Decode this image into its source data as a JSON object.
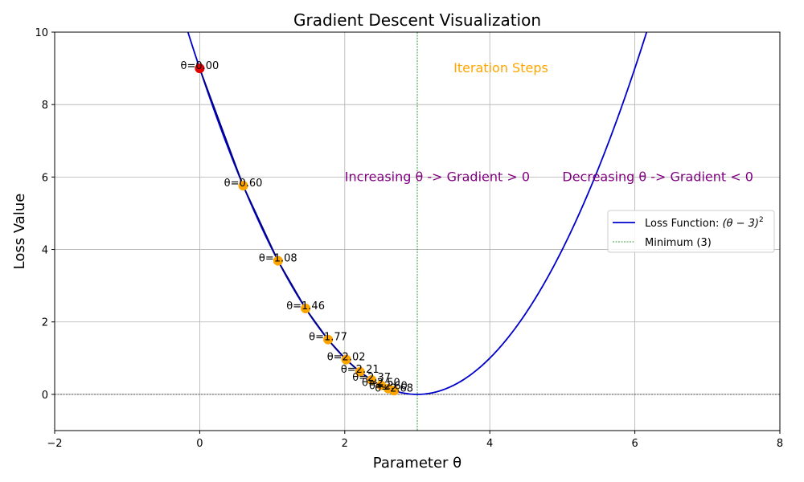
{
  "chart_data": {
    "type": "line",
    "title": "Gradient Descent Visualization",
    "xlabel": "Parameter θ",
    "ylabel": "Loss Value",
    "xlim": [
      -2,
      8
    ],
    "ylim": [
      -1,
      10
    ],
    "xticks": [
      -2,
      0,
      2,
      4,
      6,
      8
    ],
    "yticks": [
      0,
      2,
      4,
      6,
      8,
      10
    ],
    "xtick_labels": [
      "−2",
      "0",
      "2",
      "4",
      "6",
      "8"
    ],
    "ytick_labels": [
      "0",
      "2",
      "4",
      "6",
      "8",
      "10"
    ],
    "grid": true,
    "loss_function": {
      "name": "(θ−3)²",
      "center": 3
    },
    "minimum_x": 3,
    "steps": {
      "theta": [
        0.0,
        0.6,
        1.08,
        1.46,
        1.77,
        2.02,
        2.21,
        2.37,
        2.5,
        2.6,
        2.68
      ],
      "labels": [
        "θ=0.00",
        "θ=0.60",
        "θ=1.08",
        "θ=1.46",
        "θ=1.77",
        "θ=2.02",
        "θ=2.21",
        "θ=2.37",
        "θ=2.50",
        "θ=2.60",
        "θ=2.68"
      ],
      "start_color": "#e00000",
      "step_color": "#ffa500"
    },
    "annotations": [
      {
        "id": "iteration-steps",
        "text": "Iteration Steps",
        "x": 3.5,
        "y": 9.0,
        "color": "#ffa500"
      },
      {
        "id": "increasing",
        "text": "Increasing θ -> Gradient > 0",
        "x": 2.0,
        "y": 6.0,
        "color": "#800080"
      },
      {
        "id": "decreasing",
        "text": "Decreasing θ -> Gradient < 0",
        "x": 5.0,
        "y": 6.0,
        "color": "#800080"
      }
    ],
    "legend": {
      "position": "center-right",
      "entries": [
        {
          "label_prefix": "Loss Function: ",
          "label_math": "(θ − 3)",
          "label_sup": "2",
          "color": "#0000cc",
          "style": "solid"
        },
        {
          "label": "Minimum (3)",
          "color": "#008000",
          "style": "dashed"
        }
      ]
    },
    "colors": {
      "curve": "#0000cc",
      "path": "#000080",
      "minimum": "#008000",
      "zero_line": "#000000"
    }
  }
}
